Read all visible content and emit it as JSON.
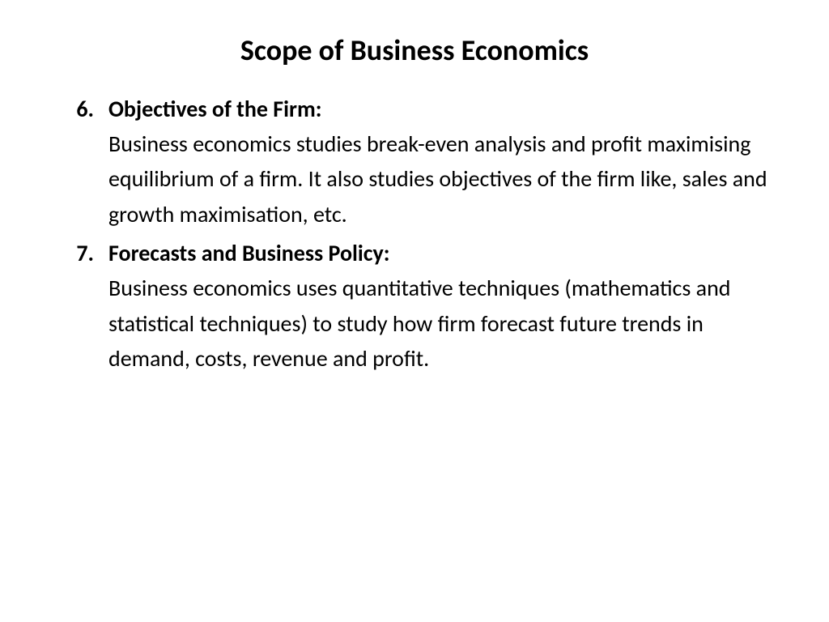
{
  "slide": {
    "title": "Scope of Business Economics",
    "items": [
      {
        "number": "6.",
        "heading": "Objectives of the Firm:",
        "body": "Business economics studies break-even analysis and profit maximising equilibrium of a firm. It also studies objectives of the firm like, sales and growth maximisation, etc."
      },
      {
        "number": "7.",
        "heading": "Forecasts and Business Policy:",
        "body": "Business economics uses quantitative techniques (mathematics and statistical techniques) to study how firm forecast future trends in demand, costs, revenue and profit."
      }
    ]
  },
  "style": {
    "background_color": "#ffffff",
    "text_color": "#000000",
    "title_fontsize": 36,
    "body_fontsize": 28,
    "font_family": "Calibri"
  }
}
